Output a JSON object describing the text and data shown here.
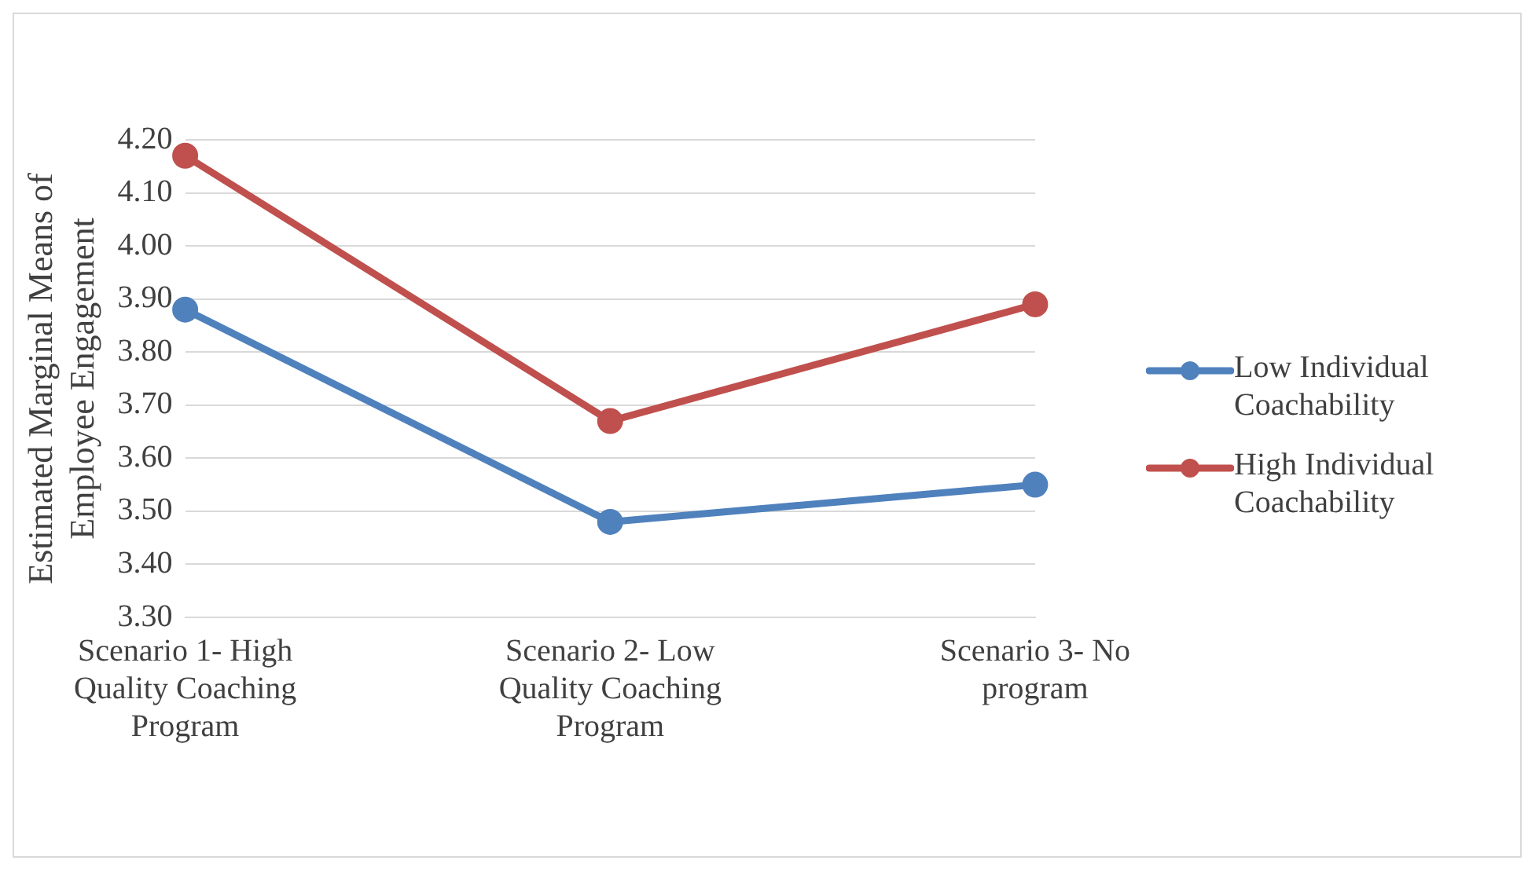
{
  "chart_data": {
    "type": "line",
    "ylabel": "Estimated Marginal Means of Employee Engagement",
    "categories": [
      "Scenario 1- High Quality Coaching Program",
      "Scenario 2- Low Quality Coaching Program",
      "Scenario 3- No program"
    ],
    "series": [
      {
        "name": "Low Individual Coachability",
        "color": "#4f81bd",
        "values": [
          3.88,
          3.48,
          3.55
        ]
      },
      {
        "name": "High Individual Coachability",
        "color": "#c0504d",
        "values": [
          4.17,
          3.67,
          3.89
        ]
      }
    ],
    "ylim": [
      3.3,
      4.2
    ],
    "yticks": [
      {
        "value": 3.3,
        "label": "3.30"
      },
      {
        "value": 3.4,
        "label": "3.40"
      },
      {
        "value": 3.5,
        "label": "3.50"
      },
      {
        "value": 3.6,
        "label": "3.60"
      },
      {
        "value": 3.7,
        "label": "3.70"
      },
      {
        "value": 3.8,
        "label": "3.80"
      },
      {
        "value": 3.9,
        "label": "3.90"
      },
      {
        "value": 4.0,
        "label": "4.00"
      },
      {
        "value": 4.1,
        "label": "4.10"
      },
      {
        "value": 4.2,
        "label": "4.20"
      }
    ],
    "grid": "y",
    "legend": "right",
    "marker": "circle",
    "line_style": "solid"
  }
}
